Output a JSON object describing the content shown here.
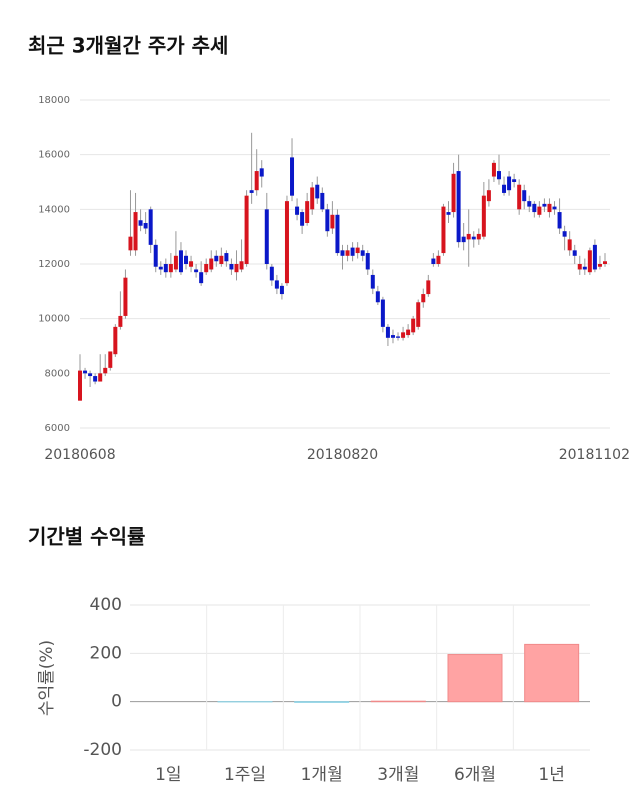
{
  "chart_data": [
    {
      "type": "candlestick",
      "title": "최근 3개월간 주가 추세",
      "categories": [
        "20180608",
        null,
        null,
        null,
        null,
        null,
        null,
        null,
        null,
        null,
        null,
        null,
        null,
        null,
        null,
        null,
        null,
        null,
        null,
        null,
        null,
        null,
        null,
        null,
        null,
        null,
        null,
        null,
        null,
        null,
        null,
        null,
        null,
        null,
        null,
        null,
        null,
        null,
        null,
        null,
        null,
        null,
        null,
        null,
        null,
        null,
        null,
        null,
        null,
        null,
        null,
        null,
        "20180820",
        null,
        null,
        null,
        null,
        null,
        null,
        null,
        null,
        null,
        null,
        null,
        null,
        null,
        null,
        null,
        null,
        null,
        null,
        null,
        null,
        null,
        null,
        null,
        null,
        null,
        null,
        null,
        null,
        null,
        null,
        null,
        null,
        null,
        null,
        null,
        null,
        null,
        null,
        null,
        null,
        null,
        null,
        null,
        null,
        null,
        null,
        null,
        null,
        null,
        null,
        null,
        "20181102"
      ],
      "open": [
        7000,
        8100,
        8000,
        7900,
        7700,
        8000,
        8200,
        8700,
        9700,
        10100,
        12500,
        12500,
        13600,
        13500,
        14000,
        12700,
        11900,
        12000,
        11700,
        11800,
        12500,
        12300,
        11900,
        11800,
        11700,
        11700,
        11800,
        12300,
        12000,
        12400,
        12000,
        11700,
        11800,
        12000,
        14700,
        14700,
        15500,
        14000,
        11900,
        11400,
        11200,
        11300,
        15900,
        14100,
        13900,
        13500,
        14000,
        14900,
        14600,
        14000,
        13300,
        13800,
        12500,
        12300,
        12600,
        12400,
        12500,
        12400,
        11600,
        11000,
        10700,
        9700,
        9400,
        9350,
        9300,
        9400,
        9500,
        9700,
        10600,
        10900,
        12200,
        12000,
        12400,
        13900,
        13900,
        15400,
        13000,
        12900,
        13000,
        12900,
        13000,
        14300,
        15200,
        15400,
        14900,
        15200,
        15100,
        14000,
        14700,
        14300,
        14200,
        13800,
        14200,
        13900,
        14100,
        13900,
        13200,
        12500,
        12500,
        11800,
        11900,
        11700,
        12700,
        11900,
        12000
      ],
      "high": [
        8700,
        8200,
        8100,
        8000,
        8700,
        8700,
        8800,
        9800,
        11000,
        11800,
        14700,
        14600,
        14000,
        13900,
        14100,
        12900,
        12100,
        12200,
        12400,
        13200,
        12800,
        12500,
        12300,
        12000,
        12100,
        12200,
        12500,
        12500,
        12600,
        12500,
        12200,
        12500,
        12900,
        14700,
        16800,
        16200,
        15800,
        14600,
        12000,
        11600,
        11300,
        14500,
        16600,
        14400,
        14000,
        14600,
        15000,
        15200,
        14800,
        14200,
        14300,
        14000,
        12700,
        12700,
        12800,
        12800,
        12700,
        12500,
        11800,
        11200,
        10800,
        9800,
        9600,
        9500,
        9700,
        9800,
        10100,
        10700,
        11100,
        11600,
        12400,
        12500,
        14200,
        14300,
        15700,
        16000,
        13500,
        14000,
        13200,
        13300,
        15000,
        15100,
        15800,
        16000,
        15200,
        15400,
        15300,
        15100,
        14900,
        14500,
        14300,
        14300,
        14400,
        14400,
        14300,
        14400,
        13400,
        13200,
        12700,
        12300,
        12200,
        12600,
        12900,
        12300,
        12400
      ],
      "low": [
        7000,
        7800,
        7500,
        7600,
        7700,
        7900,
        8100,
        8600,
        9600,
        10000,
        12300,
        12300,
        13200,
        13100,
        12400,
        11700,
        11600,
        11500,
        11500,
        11700,
        11600,
        11800,
        11700,
        11500,
        11200,
        11600,
        11700,
        11900,
        11900,
        11900,
        11600,
        11400,
        11700,
        11900,
        14200,
        14500,
        14800,
        11800,
        11200,
        10900,
        10700,
        11200,
        14300,
        13600,
        13100,
        13400,
        13800,
        14200,
        13900,
        13000,
        13100,
        12300,
        11800,
        12100,
        12100,
        12200,
        12100,
        11600,
        10900,
        10500,
        9500,
        9000,
        9100,
        9200,
        9200,
        9300,
        9400,
        9600,
        10400,
        10800,
        11900,
        11900,
        12300,
        13500,
        13700,
        12600,
        12500,
        11900,
        12600,
        12700,
        12900,
        14100,
        15000,
        14900,
        14500,
        14500,
        14800,
        13800,
        14000,
        13900,
        13700,
        13700,
        13900,
        13700,
        13800,
        13100,
        12500,
        12300,
        12000,
        11600,
        11600,
        11600,
        11700,
        11800,
        11900
      ],
      "close": [
        8100,
        8000,
        7900,
        7700,
        8000,
        8200,
        8800,
        9700,
        10100,
        11500,
        13000,
        13900,
        13400,
        13300,
        12700,
        11900,
        11800,
        11700,
        12000,
        12300,
        11700,
        12000,
        12100,
        11700,
        11300,
        12000,
        12200,
        12100,
        12300,
        12100,
        11800,
        12000,
        12100,
        14500,
        14600,
        15400,
        15200,
        12000,
        11400,
        11100,
        10900,
        14300,
        14500,
        13800,
        13400,
        14300,
        14800,
        14400,
        14000,
        13200,
        13800,
        12400,
        12300,
        12500,
        12300,
        12600,
        12300,
        11800,
        11100,
        10600,
        9700,
        9300,
        9300,
        9300,
        9500,
        9600,
        10000,
        10600,
        10900,
        11400,
        12000,
        12300,
        14100,
        13800,
        15300,
        12800,
        12800,
        13100,
        12900,
        13100,
        14500,
        14700,
        15700,
        15100,
        14600,
        14700,
        15000,
        14900,
        14300,
        14100,
        13900,
        14100,
        14100,
        14200,
        14000,
        13300,
        13000,
        12900,
        12300,
        12000,
        11800,
        12500,
        11800,
        12000,
        12100
      ],
      "up_color": "#d7141e",
      "down_color": "#0a18c8",
      "ylim": [
        6000,
        18000
      ],
      "yticks": [
        6000,
        8000,
        10000,
        12000,
        14000,
        16000,
        18000
      ],
      "grid": true
    },
    {
      "type": "bar",
      "title": "기간별 수익률",
      "ylabel": "수익률(%)",
      "categories": [
        "1일",
        "1주일",
        "1개월",
        "3개월",
        "6개월",
        "1년"
      ],
      "values": [
        0,
        -1,
        -3,
        2,
        195,
        237
      ],
      "positive_color": "#ffa3a3",
      "negative_color": "#ace3ef",
      "ylim": [
        -200,
        400
      ],
      "yticks": [
        -200,
        0,
        200,
        400
      ],
      "grid": true
    }
  ]
}
